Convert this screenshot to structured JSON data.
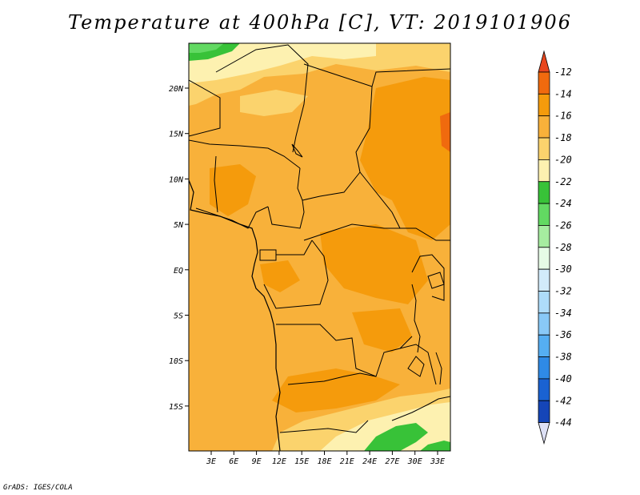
{
  "title": "Temperature at 400hPa [C], VT: 2019101906",
  "credit": "GrADS: IGES/COLA",
  "lat_ticks": [
    "20N",
    "15N",
    "10N",
    "5N",
    "EQ",
    "5S",
    "10S",
    "15S"
  ],
  "lon_ticks": [
    "3E",
    "6E",
    "9E",
    "12E",
    "15E",
    "18E",
    "21E",
    "24E",
    "27E",
    "30E",
    "33E"
  ],
  "colorbar": {
    "labels": [
      "-12",
      "-14",
      "-16",
      "-18",
      "-20",
      "-22",
      "-24",
      "-26",
      "-28",
      "-30",
      "-32",
      "-34",
      "-36",
      "-38",
      "-40",
      "-42",
      "-44"
    ],
    "colors": [
      "#e8461e",
      "#f06a0e",
      "#f59b0c",
      "#f8b13a",
      "#fbd36d",
      "#fdf1b0",
      "#38c238",
      "#62d962",
      "#a6eca0",
      "#e6fbe6",
      "#d2ebfa",
      "#aedcfa",
      "#89c9f7",
      "#55aef2",
      "#2f8ae6",
      "#1a62d2",
      "#1545b8",
      "#0a1a78",
      "#dde0f5"
    ]
  },
  "map_colors": {
    "ocean_main": "#f8b13a",
    "warm": "#f59b0c",
    "warmer": "#f06a0e",
    "cool": "#fbd36d",
    "cooler": "#fdf1b0",
    "green": "#38c238",
    "light_green": "#62d962"
  }
}
